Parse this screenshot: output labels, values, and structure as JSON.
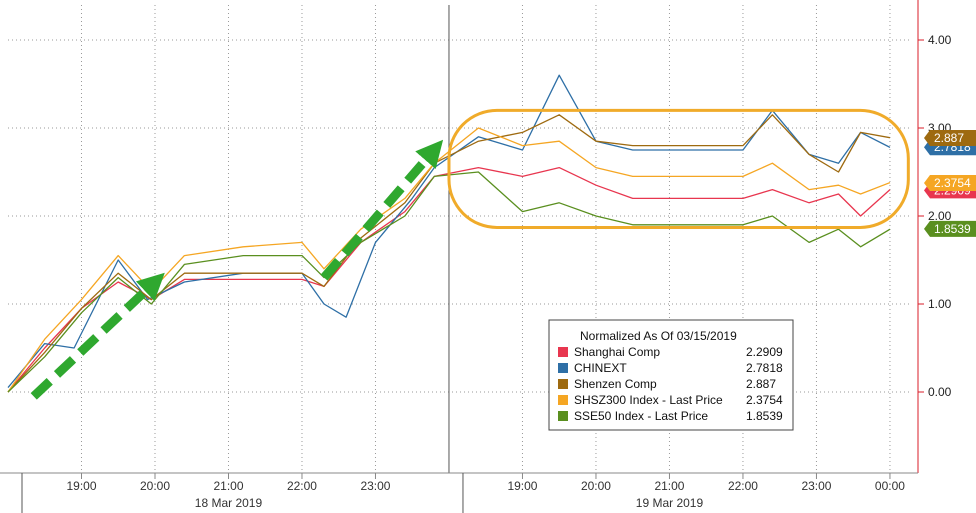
{
  "chart_data": {
    "type": "line",
    "grid": true,
    "ylim": [
      -0.6,
      4.4
    ],
    "y_ticks": [
      "4.00",
      "3.00",
      "2.00",
      "1.00",
      "0.00"
    ],
    "x_ticks": [
      {
        "label": "19:00",
        "t": 1
      },
      {
        "label": "20:00",
        "t": 2
      },
      {
        "label": "21:00",
        "t": 3
      },
      {
        "label": "22:00",
        "t": 4
      },
      {
        "label": "23:00",
        "t": 5
      },
      {
        "label": "19:00",
        "t": 7
      },
      {
        "label": "20:00",
        "t": 8
      },
      {
        "label": "21:00",
        "t": 9
      },
      {
        "label": "22:00",
        "t": 10
      },
      {
        "label": "23:00",
        "t": 11
      },
      {
        "label": "00:00",
        "t": 12
      }
    ],
    "dates": [
      {
        "label": "18 Mar 2019",
        "t": 3
      },
      {
        "label": "19 Mar 2019",
        "t": 9
      }
    ],
    "legend_title": "Normalized As Of 03/15/2019",
    "legend_placement": "bottom-right",
    "series": [
      {
        "name": "Shanghai Comp",
        "last": "2.2909",
        "color": "#e8364f",
        "points": [
          [
            0.0,
            0.0
          ],
          [
            0.5,
            0.5
          ],
          [
            1.0,
            0.95
          ],
          [
            1.5,
            1.25
          ],
          [
            1.95,
            1.05
          ],
          [
            2.4,
            1.28
          ],
          [
            3.2,
            1.28
          ],
          [
            4.0,
            1.28
          ],
          [
            4.3,
            1.2
          ],
          [
            4.8,
            1.7
          ],
          [
            5.4,
            2.05
          ],
          [
            5.8,
            2.45
          ],
          [
            6.4,
            2.55
          ],
          [
            7.0,
            2.45
          ],
          [
            7.5,
            2.55
          ],
          [
            8.0,
            2.35
          ],
          [
            8.5,
            2.2
          ],
          [
            9.2,
            2.2
          ],
          [
            10.0,
            2.2
          ],
          [
            10.4,
            2.3
          ],
          [
            10.9,
            2.15
          ],
          [
            11.3,
            2.25
          ],
          [
            11.6,
            2.0
          ],
          [
            12.0,
            2.3
          ]
        ]
      },
      {
        "name": "CHINEXT",
        "last": "2.7818",
        "color": "#2e6fa6",
        "points": [
          [
            0.0,
            0.05
          ],
          [
            0.5,
            0.55
          ],
          [
            0.9,
            0.5
          ],
          [
            1.5,
            1.5
          ],
          [
            1.9,
            1.05
          ],
          [
            2.4,
            1.25
          ],
          [
            3.2,
            1.35
          ],
          [
            4.0,
            1.35
          ],
          [
            4.3,
            1.0
          ],
          [
            4.6,
            0.85
          ],
          [
            5.0,
            1.7
          ],
          [
            5.5,
            2.2
          ],
          [
            5.8,
            2.55
          ],
          [
            6.4,
            2.9
          ],
          [
            7.0,
            2.75
          ],
          [
            7.5,
            3.6
          ],
          [
            8.0,
            2.85
          ],
          [
            8.5,
            2.75
          ],
          [
            9.2,
            2.75
          ],
          [
            10.0,
            2.75
          ],
          [
            10.4,
            3.2
          ],
          [
            10.9,
            2.7
          ],
          [
            11.3,
            2.6
          ],
          [
            11.6,
            2.95
          ],
          [
            12.0,
            2.78
          ]
        ]
      },
      {
        "name": "Shenzen Comp",
        "last": "2.887",
        "color": "#9e6a10",
        "points": [
          [
            0.0,
            0.0
          ],
          [
            0.5,
            0.45
          ],
          [
            1.0,
            0.95
          ],
          [
            1.5,
            1.35
          ],
          [
            1.95,
            1.05
          ],
          [
            2.4,
            1.35
          ],
          [
            3.2,
            1.35
          ],
          [
            4.0,
            1.35
          ],
          [
            4.3,
            1.2
          ],
          [
            4.8,
            1.75
          ],
          [
            5.4,
            2.15
          ],
          [
            5.8,
            2.6
          ],
          [
            6.4,
            2.85
          ],
          [
            7.0,
            2.95
          ],
          [
            7.5,
            3.15
          ],
          [
            8.0,
            2.85
          ],
          [
            8.5,
            2.8
          ],
          [
            9.2,
            2.8
          ],
          [
            10.0,
            2.8
          ],
          [
            10.4,
            3.15
          ],
          [
            10.9,
            2.7
          ],
          [
            11.3,
            2.5
          ],
          [
            11.6,
            2.95
          ],
          [
            12.0,
            2.89
          ]
        ]
      },
      {
        "name": "SHSZ300 Index - Last Price",
        "last": "2.3754",
        "color": "#f5a623",
        "points": [
          [
            0.0,
            0.0
          ],
          [
            0.5,
            0.6
          ],
          [
            1.0,
            1.05
          ],
          [
            1.5,
            1.55
          ],
          [
            1.95,
            1.15
          ],
          [
            2.4,
            1.55
          ],
          [
            3.2,
            1.65
          ],
          [
            4.0,
            1.7
          ],
          [
            4.3,
            1.4
          ],
          [
            4.8,
            1.85
          ],
          [
            5.4,
            2.2
          ],
          [
            5.8,
            2.6
          ],
          [
            6.4,
            3.0
          ],
          [
            7.0,
            2.8
          ],
          [
            7.5,
            2.85
          ],
          [
            8.0,
            2.55
          ],
          [
            8.5,
            2.45
          ],
          [
            9.2,
            2.45
          ],
          [
            10.0,
            2.45
          ],
          [
            10.4,
            2.6
          ],
          [
            10.9,
            2.3
          ],
          [
            11.3,
            2.35
          ],
          [
            11.6,
            2.25
          ],
          [
            12.0,
            2.38
          ]
        ]
      },
      {
        "name": "SSE50 Index - Last Price",
        "last": "1.8539",
        "color": "#5a8f1f",
        "points": [
          [
            0.0,
            0.0
          ],
          [
            0.5,
            0.4
          ],
          [
            1.0,
            0.9
          ],
          [
            1.5,
            1.3
          ],
          [
            1.95,
            1.0
          ],
          [
            2.4,
            1.45
          ],
          [
            3.2,
            1.55
          ],
          [
            4.0,
            1.55
          ],
          [
            4.3,
            1.3
          ],
          [
            4.8,
            1.7
          ],
          [
            5.4,
            2.0
          ],
          [
            5.8,
            2.45
          ],
          [
            6.4,
            2.5
          ],
          [
            7.0,
            2.05
          ],
          [
            7.5,
            2.15
          ],
          [
            8.0,
            2.0
          ],
          [
            8.5,
            1.9
          ],
          [
            9.2,
            1.9
          ],
          [
            10.0,
            1.9
          ],
          [
            10.4,
            2.0
          ],
          [
            10.9,
            1.7
          ],
          [
            11.3,
            1.85
          ],
          [
            11.6,
            1.65
          ],
          [
            12.0,
            1.85
          ]
        ]
      }
    ],
    "annotations": {
      "arrow_color": "#2fa82f",
      "highlight_color": "#f0ab2a"
    }
  }
}
